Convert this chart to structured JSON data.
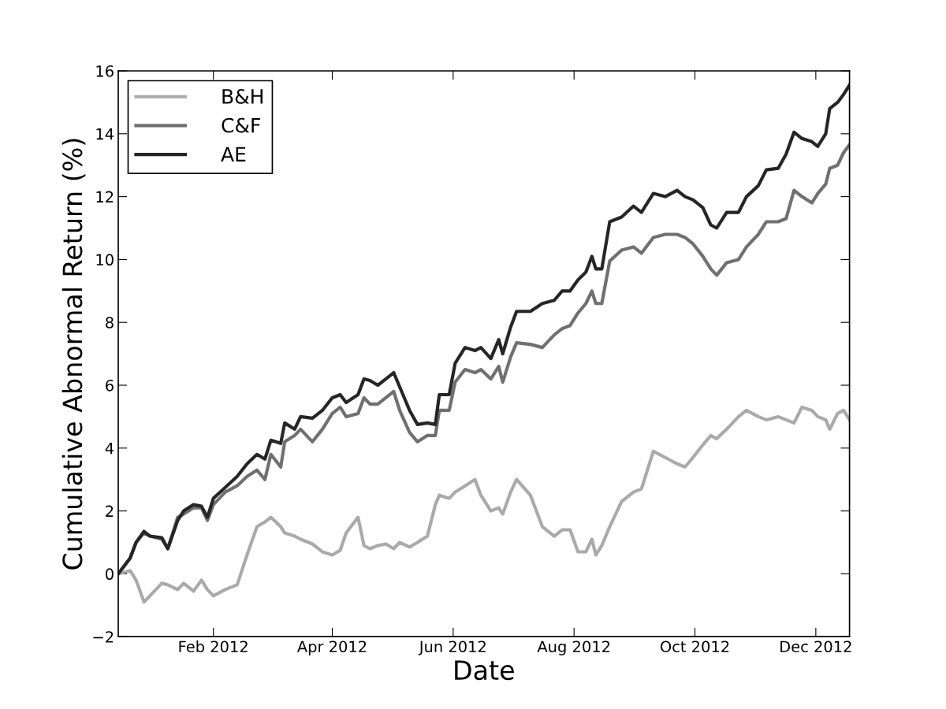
{
  "chart_data": {
    "type": "line",
    "xlabel": "Date",
    "ylabel": "Cumulative Abnormal Return (%)",
    "x": [
      "2011-12-15",
      "2011-12-21",
      "2011-12-24",
      "2011-12-28",
      "2011-12-31",
      "2012-01-06",
      "2012-01-09",
      "2012-01-14",
      "2012-01-17",
      "2012-01-22",
      "2012-01-26",
      "2012-01-29",
      "2012-02-01",
      "2012-02-07",
      "2012-02-13",
      "2012-02-18",
      "2012-02-23",
      "2012-02-27",
      "2012-03-01",
      "2012-03-06",
      "2012-03-08",
      "2012-03-13",
      "2012-03-16",
      "2012-03-22",
      "2012-03-27",
      "2012-04-01",
      "2012-04-05",
      "2012-04-08",
      "2012-04-14",
      "2012-04-17",
      "2012-04-20",
      "2012-04-24",
      "2012-04-28",
      "2012-05-02",
      "2012-05-05",
      "2012-05-10",
      "2012-05-14",
      "2012-05-19",
      "2012-05-23",
      "2012-05-25",
      "2012-05-30",
      "2012-06-02",
      "2012-06-07",
      "2012-06-12",
      "2012-06-15",
      "2012-06-20",
      "2012-06-24",
      "2012-06-26",
      "2012-06-30",
      "2012-07-03",
      "2012-07-10",
      "2012-07-16",
      "2012-07-22",
      "2012-07-26",
      "2012-07-30",
      "2012-08-03",
      "2012-08-07",
      "2012-08-10",
      "2012-08-12",
      "2012-08-15",
      "2012-08-19",
      "2012-08-25",
      "2012-08-31",
      "2012-09-04",
      "2012-09-10",
      "2012-09-16",
      "2012-09-22",
      "2012-09-26",
      "2012-09-30",
      "2012-10-05",
      "2012-10-09",
      "2012-10-12",
      "2012-10-17",
      "2012-10-23",
      "2012-10-27",
      "2012-11-02",
      "2012-11-06",
      "2012-11-12",
      "2012-11-16",
      "2012-11-20",
      "2012-11-24",
      "2012-11-29",
      "2012-12-02",
      "2012-12-06",
      "2012-12-08",
      "2012-12-12",
      "2012-12-15",
      "2012-12-18"
    ],
    "series": [
      {
        "name": "B&H",
        "color": "#aaaaaa",
        "values": [
          0,
          0.1,
          -0.2,
          -0.9,
          -0.7,
          -0.3,
          -0.35,
          -0.5,
          -0.3,
          -0.55,
          -0.2,
          -0.5,
          -0.7,
          -0.5,
          -0.35,
          0.6,
          1.5,
          1.65,
          1.8,
          1.5,
          1.3,
          1.2,
          1.1,
          0.95,
          0.7,
          0.6,
          0.75,
          1.3,
          1.8,
          0.9,
          0.8,
          0.9,
          0.95,
          0.8,
          1.0,
          0.85,
          1.0,
          1.2,
          2.2,
          2.5,
          2.4,
          2.6,
          2.8,
          3.0,
          2.5,
          2.0,
          2.1,
          1.9,
          2.6,
          3.0,
          2.5,
          1.5,
          1.2,
          1.4,
          1.4,
          0.7,
          0.7,
          1.1,
          0.6,
          0.9,
          1.5,
          2.3,
          2.6,
          2.7,
          3.9,
          3.7,
          3.5,
          3.4,
          3.7,
          4.1,
          4.4,
          4.3,
          4.6,
          5.0,
          5.2,
          5.0,
          4.9,
          5.0,
          4.9,
          4.8,
          5.3,
          5.2,
          5.0,
          4.9,
          4.6,
          5.1,
          5.2,
          4.9
        ]
      },
      {
        "name": "C&F",
        "color": "#707070",
        "values": [
          0,
          0.5,
          1.0,
          1.3,
          1.2,
          1.1,
          0.8,
          1.8,
          1.9,
          2.1,
          2.1,
          1.7,
          2.2,
          2.6,
          2.8,
          3.1,
          3.3,
          3.0,
          3.8,
          3.4,
          4.2,
          4.4,
          4.6,
          4.2,
          4.6,
          5.1,
          5.3,
          5.0,
          5.1,
          5.6,
          5.4,
          5.4,
          5.6,
          5.8,
          5.2,
          4.5,
          4.2,
          4.4,
          4.4,
          5.2,
          5.2,
          6.1,
          6.5,
          6.4,
          6.5,
          6.2,
          6.6,
          6.1,
          6.9,
          7.35,
          7.3,
          7.2,
          7.6,
          7.8,
          7.9,
          8.3,
          8.6,
          9.0,
          8.6,
          8.6,
          9.95,
          10.3,
          10.4,
          10.2,
          10.7,
          10.8,
          10.8,
          10.7,
          10.5,
          10.1,
          9.7,
          9.5,
          9.9,
          10.0,
          10.4,
          10.8,
          11.2,
          11.2,
          11.3,
          12.2,
          12.0,
          11.8,
          12.1,
          12.4,
          12.9,
          13.0,
          13.4,
          13.65
        ]
      },
      {
        "name": "AE",
        "color": "#262626",
        "values": [
          0,
          0.5,
          1.0,
          1.35,
          1.2,
          1.15,
          0.8,
          1.7,
          2.0,
          2.2,
          2.15,
          1.8,
          2.4,
          2.75,
          3.1,
          3.5,
          3.8,
          3.65,
          4.25,
          4.15,
          4.8,
          4.6,
          5.0,
          4.95,
          5.2,
          5.6,
          5.7,
          5.45,
          5.7,
          6.2,
          6.15,
          6.0,
          6.2,
          6.4,
          5.95,
          5.2,
          4.75,
          4.8,
          4.75,
          5.7,
          5.7,
          6.7,
          7.2,
          7.1,
          7.2,
          6.85,
          7.45,
          7.0,
          7.85,
          8.35,
          8.35,
          8.6,
          8.7,
          9.0,
          9.0,
          9.35,
          9.6,
          10.1,
          9.7,
          9.7,
          11.2,
          11.35,
          11.7,
          11.5,
          12.1,
          12.0,
          12.2,
          12.0,
          11.9,
          11.65,
          11.1,
          11.0,
          11.5,
          11.5,
          12.0,
          12.35,
          12.85,
          12.9,
          13.35,
          14.05,
          13.85,
          13.75,
          13.6,
          14.0,
          14.8,
          15.0,
          15.25,
          15.55
        ]
      }
    ],
    "xlim": [
      "2011-12-15",
      "2012-12-18"
    ],
    "xticks": [
      {
        "value": "2012-02-01",
        "label": "Feb 2012"
      },
      {
        "value": "2012-04-01",
        "label": "Apr 2012"
      },
      {
        "value": "2012-06-01",
        "label": "Jun 2012"
      },
      {
        "value": "2012-08-01",
        "label": "Aug 2012"
      },
      {
        "value": "2012-10-01",
        "label": "Oct 2012"
      },
      {
        "value": "2012-12-01",
        "label": "Dec 2012"
      }
    ],
    "ylim": [
      -2,
      16
    ],
    "yticks": [
      {
        "value": -2,
        "label": "−2"
      },
      0,
      2,
      4,
      6,
      8,
      10,
      12,
      14,
      16
    ],
    "legend": "top left",
    "grid": false,
    "marker": "none",
    "line_style": "solid"
  }
}
